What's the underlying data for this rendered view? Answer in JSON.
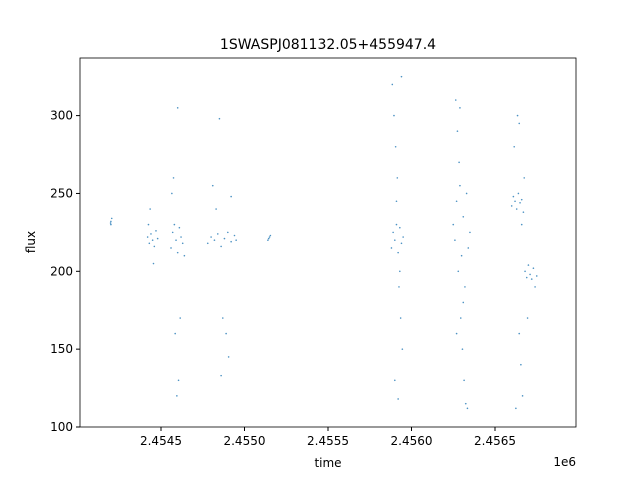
{
  "chart_data": {
    "type": "scatter",
    "title": "1SWASPJ081132.05+455947.4",
    "x_label": "time",
    "y_label": "flux",
    "x_offset_label": "1e6",
    "color": "#1f77b4",
    "xlim": [
      2454015,
      2456985
    ],
    "ylim": [
      100,
      337
    ],
    "xticks": [
      {
        "value": 2454500,
        "label": "2.4545"
      },
      {
        "value": 2455000,
        "label": "2.4550"
      },
      {
        "value": 2455500,
        "label": "2.4555"
      },
      {
        "value": 2456000,
        "label": "2.4560"
      },
      {
        "value": 2456500,
        "label": "2.4565"
      }
    ],
    "yticks": [
      100,
      150,
      200,
      250,
      300
    ],
    "x": [
      2454200,
      2454200,
      2454205,
      2454198,
      2454420,
      2454430,
      2454440,
      2454450,
      2454460,
      2454470,
      2454480,
      2454435,
      2454455,
      2454425,
      2454560,
      2454570,
      2454580,
      2454590,
      2454600,
      2454610,
      2454620,
      2454630,
      2454640,
      2454575,
      2454595,
      2454605,
      2454615,
      2454585,
      2454600,
      2454565,
      2454780,
      2454800,
      2454820,
      2454840,
      2454860,
      2454880,
      2454900,
      2454920,
      2454940,
      2454950,
      2454810,
      2454830,
      2454870,
      2454890,
      2454905,
      2454860,
      2454850,
      2454920,
      2455140,
      2455150,
      2455155,
      2455145,
      2455880,
      2455890,
      2455900,
      2455910,
      2455920,
      2455930,
      2455940,
      2455950,
      2455885,
      2455895,
      2455905,
      2455915,
      2455925,
      2455935,
      2455945,
      2455900,
      2455920,
      2455940,
      2455910,
      2455930,
      2456250,
      2456260,
      2456270,
      2456280,
      2456290,
      2456300,
      2456310,
      2456320,
      2456330,
      2456340,
      2456350,
      2456265,
      2456275,
      2456285,
      2456295,
      2456305,
      2456315,
      2456325,
      2456335,
      2456290,
      2456310,
      2456270,
      2456600,
      2456610,
      2456620,
      2456630,
      2456640,
      2456650,
      2456660,
      2456670,
      2456680,
      2456690,
      2456700,
      2456710,
      2456720,
      2456730,
      2456740,
      2456750,
      2456615,
      2456635,
      2456645,
      2456655,
      2456665,
      2456625,
      2456675,
      2456695,
      2456645,
      2456660
    ],
    "values": [
      230,
      232,
      234,
      231,
      222,
      218,
      224,
      220,
      216,
      226,
      221,
      240,
      205,
      230,
      215,
      225,
      230,
      220,
      212,
      228,
      222,
      218,
      210,
      260,
      120,
      130,
      170,
      160,
      305,
      250,
      218,
      222,
      220,
      224,
      216,
      221,
      225,
      219,
      223,
      220,
      255,
      240,
      170,
      160,
      145,
      133,
      298,
      248,
      220,
      222,
      223,
      221,
      215,
      225,
      220,
      230,
      212,
      228,
      218,
      222,
      320,
      300,
      280,
      260,
      190,
      170,
      150,
      130,
      118,
      325,
      245,
      200,
      230,
      220,
      245,
      200,
      255,
      210,
      235,
      190,
      250,
      215,
      225,
      310,
      290,
      270,
      170,
      150,
      130,
      115,
      112,
      305,
      180,
      160,
      242,
      248,
      245,
      240,
      250,
      244,
      246,
      238,
      200,
      196,
      204,
      198,
      195,
      202,
      190,
      197,
      280,
      300,
      160,
      140,
      120,
      112,
      260,
      170,
      295,
      230
    ]
  }
}
